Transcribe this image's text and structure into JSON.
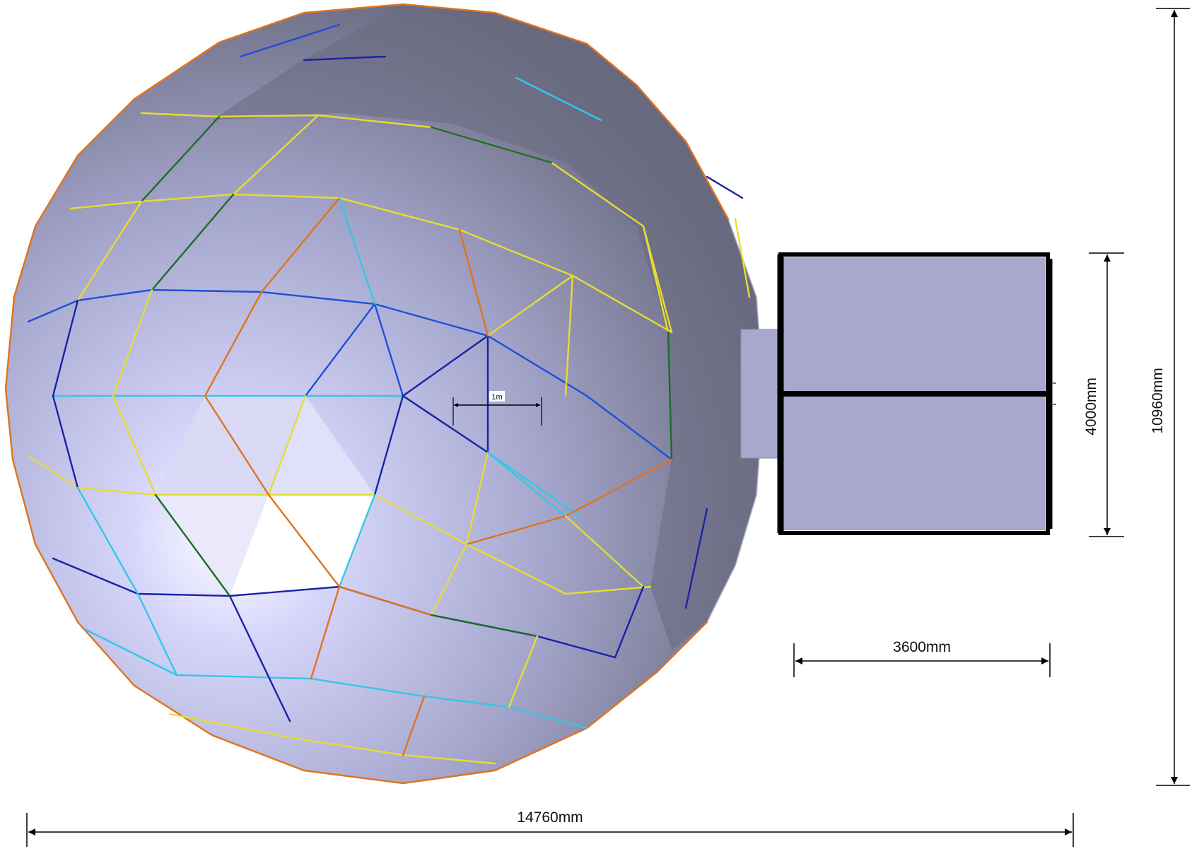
{
  "drawing": {
    "dimensions": {
      "overall_width": "14760mm",
      "overall_height": "10960mm",
      "annex_height": "4000mm",
      "annex_width": "3600mm",
      "scale_bar": "1m"
    },
    "colors": {
      "background": "#ffffff",
      "dome_light": "#d6d6fb",
      "dome_mid": "#a5a6cc",
      "dome_dark": "#6a6b80",
      "annex_fill": "#a7a8cb",
      "frame": "#000000",
      "strut_orange": "#e0731c",
      "strut_yellow": "#e6dc32",
      "strut_blue": "#1f4fd6",
      "strut_navy": "#1a22a8",
      "strut_cyan": "#32c8e6",
      "strut_green": "#1d6b2a",
      "dimension_line": "#000000"
    }
  }
}
